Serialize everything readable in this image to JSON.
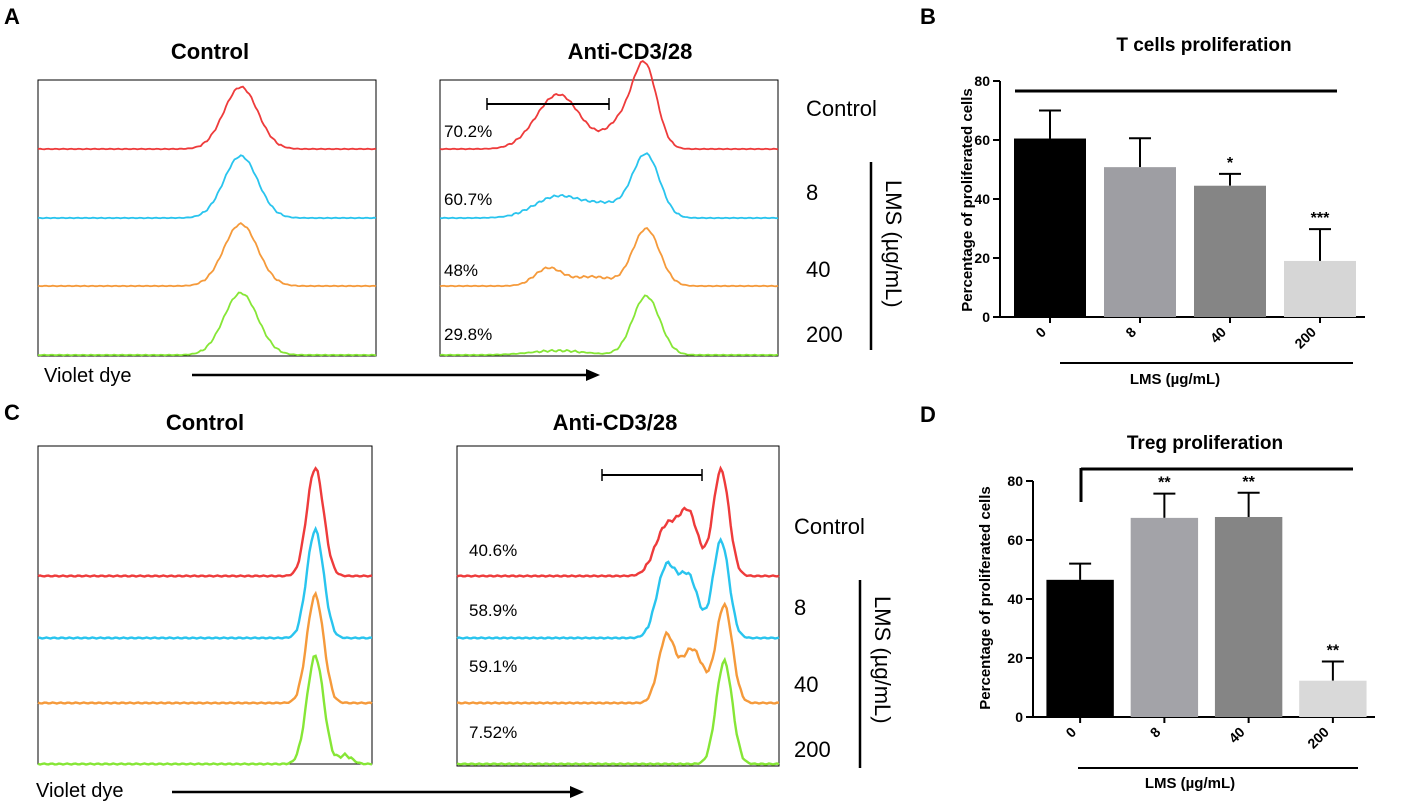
{
  "chart_data": [
    {
      "panel": "A",
      "type": "histogram-overlay",
      "xlabel": "Violet dye",
      "group_label": "LMS (µg/mL)",
      "row_labels": [
        "Control",
        "8",
        "40",
        "200"
      ],
      "columns": [
        {
          "title": "Control",
          "peaks": [
            [
              0.5,
              1.0
            ]
          ],
          "percents": []
        },
        {
          "title": "Anti-CD3/28",
          "percents": [
            "70.2%",
            "60.7%",
            "48%",
            "29.8%"
          ],
          "series_peaks": [
            [
              [
                0.32,
                0.9
              ],
              [
                0.58,
                0.58
              ],
              [
                0.75,
                1.0
              ]
            ],
            [
              [
                0.32,
                0.38
              ],
              [
                0.75,
                1.0
              ]
            ],
            [
              [
                0.32,
                0.3
              ],
              [
                0.75,
                0.92
              ]
            ],
            [
              [
                0.32,
                0.08
              ],
              [
                0.75,
                0.96
              ]
            ]
          ]
        }
      ],
      "colors": [
        "#ee3b3b",
        "#29c4ee",
        "#f59a3b",
        "#86e636"
      ]
    },
    {
      "panel": "B",
      "type": "bar",
      "title": "T cells  proliferation",
      "ylabel": "Percentage of proliferated cells",
      "xlabel": "LMS (µg/mL)",
      "categories": [
        "0",
        "8",
        "40",
        "200"
      ],
      "values": [
        60.5,
        50.8,
        44.5,
        19
      ],
      "errors": [
        9.5,
        9.8,
        4,
        10.8
      ],
      "significance": [
        "",
        "",
        "*",
        "***"
      ],
      "ylim": [
        0,
        80
      ],
      "yticks": [
        0,
        20,
        40,
        60,
        80
      ],
      "bar_colors": [
        "#000000",
        "#9e9ea3",
        "#858585",
        "#d6d6d6"
      ]
    },
    {
      "panel": "C",
      "type": "histogram-overlay",
      "xlabel": "Violet dye",
      "group_label": "LMS (µg/mL)",
      "row_labels": [
        "Control",
        "8",
        "40",
        "200"
      ],
      "columns": [
        {
          "title": "Control",
          "percents": []
        },
        {
          "title": "Anti-CD3/28",
          "percents": [
            "40.6%",
            "58.9%",
            "59.1%",
            "7.52%"
          ]
        }
      ],
      "colors": [
        "#ee3b3b",
        "#29c4ee",
        "#f59a3b",
        "#86e636"
      ]
    },
    {
      "panel": "D",
      "type": "bar",
      "title": "Treg proliferation",
      "ylabel": "Percentage of proliferated cells",
      "xlabel": "LMS (µg/mL)",
      "categories": [
        "0",
        "8",
        "40",
        "200"
      ],
      "values": [
        46.5,
        67.5,
        67.8,
        12.3
      ],
      "errors": [
        5.5,
        8.2,
        8.2,
        6.5
      ],
      "significance": [
        "",
        "**",
        "**",
        "**"
      ],
      "ylim": [
        0,
        80
      ],
      "yticks": [
        0,
        20,
        40,
        60,
        80
      ],
      "bar_colors": [
        "#000000",
        "#a3a3a8",
        "#858585",
        "#d9d9d9"
      ]
    }
  ],
  "panel_letters": [
    "A",
    "B",
    "C",
    "D"
  ]
}
